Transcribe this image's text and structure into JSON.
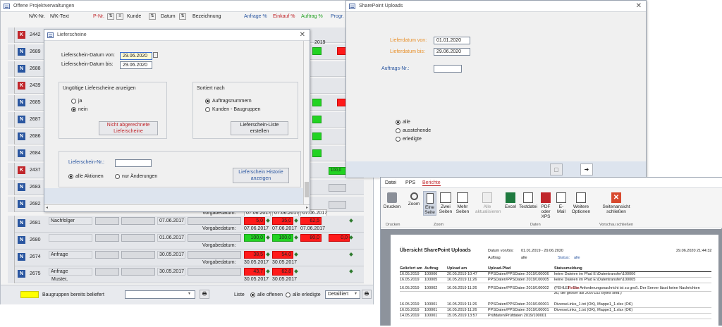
{
  "main": {
    "title": "Offene Projektverwaltungen",
    "headers": {
      "nk_nr": "N/K-Nr.",
      "nk_text": "N/K-Text",
      "p_nr": "P-Nr.",
      "kunde": "Kunde",
      "datum": "Datum",
      "bezeichnung": "Bezeichnung",
      "anfrage": "Anfrage %",
      "einkauf": "Einkauf %",
      "auftrag": "Auftrag %",
      "prog": "Progr."
    },
    "rows_top": [
      {
        "type": "K",
        "nr": "2442"
      },
      {
        "type": "N",
        "nr": "2689"
      },
      {
        "type": "N",
        "nr": "2688"
      },
      {
        "type": "K",
        "nr": "2439"
      },
      {
        "type": "N",
        "nr": "2685"
      },
      {
        "type": "N",
        "nr": "2687"
      },
      {
        "type": "N",
        "nr": "2686"
      },
      {
        "type": "N",
        "nr": "2684"
      },
      {
        "type": "K",
        "nr": "2437"
      },
      {
        "type": "N",
        "nr": "2683"
      },
      {
        "type": "N",
        "nr": "2682"
      }
    ],
    "peek": {
      "d1": "2019",
      "v1": "0,0",
      "v2": "100,0",
      "lbl": "Vorgabedatum:",
      "d2": "07.06.2017",
      "d3": "07.06.2017",
      "d4": "07.06.2017"
    },
    "rows_bottom": [
      {
        "type": "N",
        "nr": "2681",
        "text": "Nachfolger",
        "datum": "07.06.2017",
        "a": "5,0",
        "e": "35,0",
        "au": "62,5",
        "vd": "Vorgabedatum:",
        "d1": "07.06.2017",
        "d2": "07.06.2017",
        "d3": "07.06.2017"
      },
      {
        "type": "N",
        "nr": "2680",
        "text": "",
        "datum": "01.06.2017",
        "a": "100,0",
        "e": "100,0",
        "au": "80,0",
        "p": "0,0",
        "vd": "Vorgabedatum:"
      },
      {
        "type": "N",
        "nr": "2674",
        "text": "Anfrage",
        "datum": "30.05.2017",
        "a": "38,5",
        "e": "54,0",
        "vd": "Vorgabedatum:",
        "d1": "30.05.2017",
        "d2": "30.05.2017"
      },
      {
        "type": "N",
        "nr": "2675",
        "text": "Anfrage",
        "text2": "Muster,",
        "datum": "30.05.2017",
        "a": "43,7",
        "e": "62,8",
        "d1": "30.05.2017",
        "d2": "30.05.2017"
      }
    ],
    "footer": {
      "legend": "Baugruppen bereits beliefert",
      "liste": "Liste",
      "opt1": "alle offenen",
      "opt2": "alle erledigte",
      "select": "Detailliert"
    }
  },
  "lieferscheine": {
    "title": "Lieferscheine",
    "von_label": "Lieferschein-Datum von:",
    "von_value": "29.06.2020",
    "bis_label": "Lieferschein-Datum bis:",
    "bis_value": "29.06.2020",
    "ungueltig_title": "Ungültige Lieferscheine anzeigen",
    "ja": "ja",
    "nein": "nein",
    "nicht_btn": "Nicht abgerechnete Lieferscheine",
    "sort_title": "Sortiert nach",
    "sort1": "Auftragsnummern",
    "sort2": "Kunden - Baugruppen",
    "liste_btn": "Lieferschein-Liste erstellen",
    "nr_label": "Lieferschein-Nr.:",
    "alle_aktionen": "alle Aktionen",
    "nur_aenderungen": "nur Änderungen",
    "historie_btn": "Lieferschein Historie anzeigen"
  },
  "sharepoint": {
    "title": "SharePoint Uploads",
    "von_label": "Lieferdatum von:",
    "von_value": "01.01.2020",
    "bis_label": "Lieferdatum bis:",
    "bis_value": "29.06.2020",
    "auftrag_label": "Auftrags-Nr.:",
    "opt_alle": "alle",
    "opt_ausstehend": "ausstehende",
    "opt_erledigt": "erledigte"
  },
  "report": {
    "tabs": [
      "Datei",
      "PPS",
      "Berichte"
    ],
    "ribbon": {
      "drucken": "Drucken",
      "zoom": "Zoom",
      "eine_seite": "Eine Seite",
      "zwei_seiten": "Zwei Seiten",
      "mehr_seiten": "Mehr Seiten",
      "alle_akt": "Alle aktualisieren",
      "excel": "Excel",
      "textdatei": "Textdatei",
      "pdf": "PDF oder XPS",
      "email": "E-Mail",
      "weitere": "Weitere Optionen",
      "schliessen": "Seitenansicht schließen",
      "grp_drucken": "Drucken",
      "grp_zoom": "Zoom",
      "grp_daten": "Daten",
      "grp_schliessen": "Vorschau schließen"
    },
    "doc": {
      "title": "Übersicht SharePoint Uploads",
      "vonbis_label": "Datum von/bis:",
      "vonbis_value": "01.01.2019 - 29.06.2020",
      "auftrag_label": "Auftrag",
      "auftrag_value": "alle",
      "status_label": "Status:",
      "status_value": "alle",
      "timestamp": "29.06.2020 21:44:32",
      "columns": [
        "Geliefert am",
        "Auftrag",
        "Upload am",
        "Upload-Pfad",
        "Statusmeldung"
      ],
      "rows": [
        [
          "16.05.2019",
          "100006",
          "20.05.2019 10:47",
          "PPSDaten/PPSDaten 2019/100006",
          "keine Dateien im Pfad E:\\Datentransfer\\100006"
        ],
        [
          "16.05.2019",
          "100005",
          "16.05.2019 11:26",
          "PPSDaten/PPSDaten 2019/100005",
          "keine Dateien im Pfad E:\\Datentransfer\\100005"
        ],
        [
          "16.05.2019",
          "100002",
          "16.05.2019 11:26",
          "PPSDaten/PPSDaten 2019/100002",
          "(FEHLER: Die Anforderungsnachricht ist zu groß. Der Server lässt keine Nachrichten zu, die größer als 2097152 Bytes sind.)"
        ],
        [
          "16.05.2019",
          "100001",
          "16.05.2019 11:26",
          "PPSDaten/PPSDaten 2019/100001",
          "DiverseLinks_1.txt (OK), Mappe1_1.xlsx (OK)"
        ],
        [
          "16.05.2019",
          "100001",
          "16.05.2019 11:26",
          "PPSDaten/PPSDaten 2019/100001",
          "DiverseLinks_1.txt (OK), Mappe1_1.xlsx (OK)"
        ],
        [
          "14.05.2019",
          "100001",
          "15.05.2019 13:57",
          "Prüfdaten/Prüfdaten 2019/100001",
          ""
        ]
      ],
      "fehler": "Fehler"
    }
  },
  "colors": {
    "red": "#ff1a1a",
    "green": "#22d322",
    "blue_badge": "#2a56a0",
    "red_badge": "#c0262b",
    "yellow": "#ffff00",
    "orange_label": "#e8902a",
    "panel_blue": "#dde4ee"
  }
}
